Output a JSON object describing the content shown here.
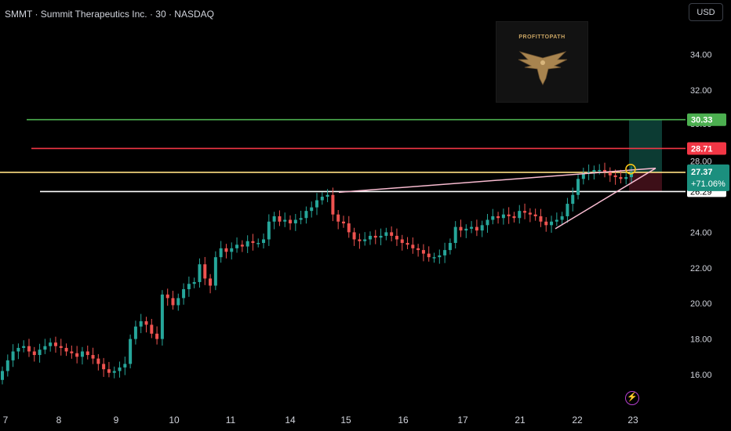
{
  "header": {
    "title": "SMMT · Summit Therapeutics Inc. · 30 · NASDAQ"
  },
  "currency_button": "USD",
  "watermark": {
    "text": "PROFITTOPATH"
  },
  "colors": {
    "up": "#26a69a",
    "down": "#ef5350",
    "target_line": "#4caf50",
    "stop_line": "#f23645",
    "entry_line": "#ffe082",
    "support_line": "#ffffff",
    "trendline": "#f8bbd0",
    "profit_zone": "#0c3b33",
    "loss_zone": "#3d0f18"
  },
  "icons": [
    "lightning-icon",
    "eagle-icon"
  ],
  "chart_data": {
    "type": "candlestick",
    "x_tick_labels": [
      "7",
      "8",
      "9",
      "10",
      "11",
      "14",
      "15",
      "16",
      "17",
      "21",
      "22",
      "23"
    ],
    "y_ticks": [
      16,
      18,
      20,
      22,
      24,
      26,
      28,
      30,
      32,
      34
    ],
    "y_tick_labels": [
      "16.00",
      "18.00",
      "20.00",
      "22.00",
      "24.00",
      "26.00",
      "28.00",
      "30.00",
      "32.00",
      "34.00"
    ],
    "ylim": [
      15.0,
      35.5
    ],
    "grid": false,
    "close_series": [
      16.2,
      16.8,
      17.3,
      17.5,
      17.6,
      17.3,
      17.1,
      17.4,
      17.6,
      17.8,
      17.6,
      17.5,
      17.3,
      17.2,
      17.0,
      17.3,
      17.1,
      16.9,
      16.6,
      16.3,
      16.1,
      16.2,
      16.4,
      16.6,
      18.0,
      18.7,
      19.0,
      18.8,
      18.3,
      18.0,
      20.5,
      20.3,
      19.9,
      20.3,
      20.8,
      21.1,
      21.2,
      22.2,
      21.4,
      21.0,
      22.6,
      23.1,
      22.9,
      23.1,
      23.3,
      23.2,
      23.5,
      23.4,
      23.4,
      23.6,
      24.6,
      24.9,
      24.6,
      24.7,
      24.5,
      24.7,
      24.8,
      25.2,
      25.4,
      25.8,
      26.0,
      26.1,
      25.0,
      24.6,
      24.5,
      24.0,
      23.6,
      23.5,
      23.6,
      23.8,
      23.7,
      23.8,
      24.0,
      23.8,
      23.6,
      23.4,
      23.3,
      23.1,
      23.0,
      22.8,
      22.6,
      22.6,
      22.7,
      23.0,
      23.4,
      24.3,
      24.1,
      24.2,
      24.3,
      24.1,
      24.4,
      24.7,
      24.9,
      24.8,
      25.0,
      24.9,
      24.8,
      25.2,
      25.1,
      25.0,
      24.9,
      24.6,
      24.4,
      24.6,
      24.7,
      24.9,
      25.6,
      26.1,
      27.0,
      27.3,
      27.4,
      27.5,
      27.5,
      27.4,
      27.2,
      27.1,
      27.0,
      27.1,
      27.37
    ],
    "levels": [
      {
        "name": "target",
        "value": "30.33"
      },
      {
        "name": "stop",
        "value": "28.71"
      },
      {
        "name": "entry",
        "value": "27.37",
        "change": "+71.06%"
      },
      {
        "name": "support",
        "value": "26.29"
      }
    ],
    "partial_axis_labels": [
      "30.00",
      "26.29"
    ]
  }
}
